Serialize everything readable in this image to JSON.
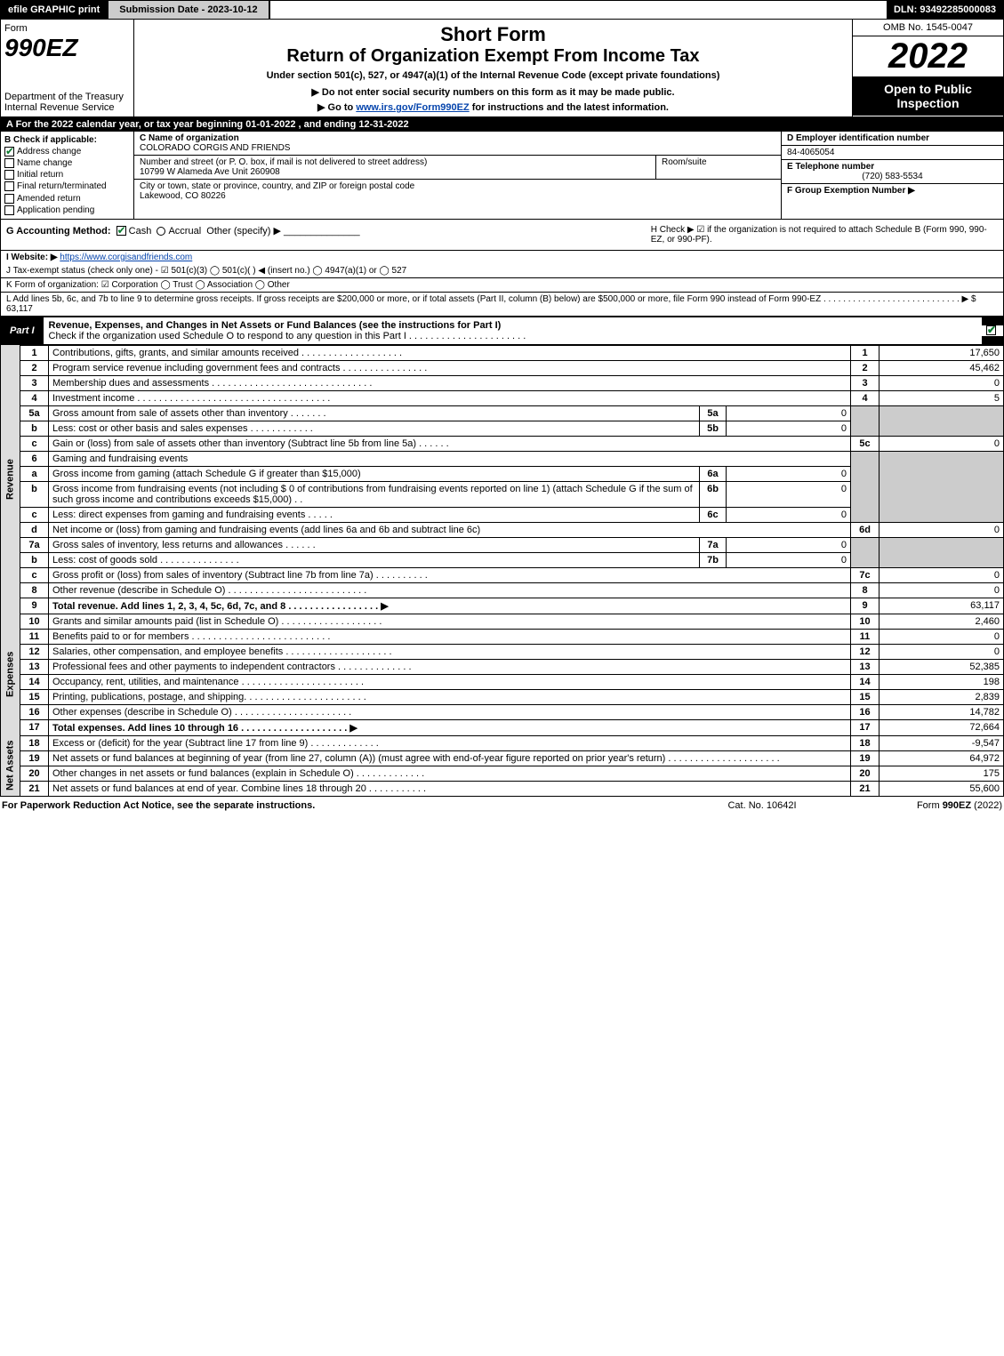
{
  "topbar": {
    "efile": "efile GRAPHIC print",
    "submission": "Submission Date - 2023-10-12",
    "dln": "DLN: 93492285000083"
  },
  "header": {
    "form_label": "Form",
    "form_code": "990EZ",
    "dept": "Department of the Treasury\nInternal Revenue Service",
    "short_form": "Short Form",
    "title": "Return of Organization Exempt From Income Tax",
    "subtitle": "Under section 501(c), 527, or 4947(a)(1) of the Internal Revenue Code (except private foundations)",
    "note1": "▶ Do not enter social security numbers on this form as it may be made public.",
    "note2_pre": "▶ Go to ",
    "note2_link": "www.irs.gov/Form990EZ",
    "note2_post": " for instructions and the latest information.",
    "omb": "OMB No. 1545-0047",
    "year": "2022",
    "open": "Open to Public Inspection"
  },
  "secA": "A  For the 2022 calendar year, or tax year beginning 01-01-2022 , and ending 12-31-2022",
  "secB": {
    "title": "B  Check if applicable:",
    "items": [
      {
        "label": "Address change",
        "checked": true
      },
      {
        "label": "Name change",
        "checked": false
      },
      {
        "label": "Initial return",
        "checked": false
      },
      {
        "label": "Final return/terminated",
        "checked": false
      },
      {
        "label": "Amended return",
        "checked": false
      },
      {
        "label": "Application pending",
        "checked": false
      }
    ]
  },
  "secC": {
    "name_lbl": "C Name of organization",
    "name": "COLORADO CORGIS AND FRIENDS",
    "street_lbl": "Number and street (or P. O. box, if mail is not delivered to street address)",
    "street": "10799 W Alameda Ave Unit 260908",
    "room_lbl": "Room/suite",
    "room": "",
    "city_lbl": "City or town, state or province, country, and ZIP or foreign postal code",
    "city": "Lakewood, CO  80226"
  },
  "secD": {
    "d_lbl": "D Employer identification number",
    "ein": "84-4065054",
    "e_lbl": "E Telephone number",
    "phone": "(720) 583-5534",
    "f_lbl": "F Group Exemption Number  ▶",
    "f_val": ""
  },
  "secG": {
    "label": "G Accounting Method:",
    "cash": "Cash",
    "accrual": "Accrual",
    "other": "Other (specify) ▶",
    "cash_checked": true,
    "accrual_checked": false
  },
  "secH": {
    "text": "H  Check ▶ ☑ if the organization is not required to attach Schedule B (Form 990, 990-EZ, or 990-PF)."
  },
  "secI": {
    "label": "I Website: ▶",
    "url": "https://www.corgisandfriends.com"
  },
  "secJ": {
    "text": "J Tax-exempt status (check only one) - ☑ 501(c)(3) ◯ 501(c)(  ) ◀ (insert no.) ◯ 4947(a)(1) or ◯ 527"
  },
  "secK": {
    "text": "K Form of organization:  ☑ Corporation  ◯ Trust  ◯ Association  ◯ Other"
  },
  "secL": {
    "text": "L Add lines 5b, 6c, and 7b to line 9 to determine gross receipts. If gross receipts are $200,000 or more, or if total assets (Part II, column (B) below) are $500,000 or more, file Form 990 instead of Form 990-EZ  .  .  .  .  .  .  .  .  .  .  .  .  .  .  .  .  .  .  .  .  .  .  .  .  .  .  .  .  ▶ $ 63,117"
  },
  "part1": {
    "label": "Part I",
    "title": "Revenue, Expenses, and Changes in Net Assets or Fund Balances (see the instructions for Part I)",
    "sub": "Check if the organization used Schedule O to respond to any question in this Part I  .  .  .  .  .  .  .  .  .  .  .  .  .  .  .  .  .  .  .  .  .  ."
  },
  "sides": {
    "revenue": "Revenue",
    "expenses": "Expenses",
    "netassets": "Net Assets"
  },
  "lines": {
    "l1": {
      "n": "1",
      "d": "Contributions, gifts, grants, and similar amounts received  .  .  .  .  .  .  .  .  .  .  .  .  .  .  .  .  .  .  .",
      "c": "1",
      "v": "17,650"
    },
    "l2": {
      "n": "2",
      "d": "Program service revenue including government fees and contracts  .  .  .  .  .  .  .  .  .  .  .  .  .  .  .  .",
      "c": "2",
      "v": "45,462"
    },
    "l3": {
      "n": "3",
      "d": "Membership dues and assessments  .  .  .  .  .  .  .  .  .  .  .  .  .  .  .  .  .  .  .  .  .  .  .  .  .  .  .  .  .  .",
      "c": "3",
      "v": "0"
    },
    "l4": {
      "n": "4",
      "d": "Investment income  .  .  .  .  .  .  .  .  .  .  .  .  .  .  .  .  .  .  .  .  .  .  .  .  .  .  .  .  .  .  .  .  .  .  .  .",
      "c": "4",
      "v": "5"
    },
    "l5a": {
      "n": "5a",
      "d": "Gross amount from sale of assets other than inventory  .  .  .  .  .  .  .",
      "s": "5a",
      "sv": "0"
    },
    "l5b": {
      "n": "b",
      "d": "Less: cost or other basis and sales expenses  .  .  .  .  .  .  .  .  .  .  .  .",
      "s": "5b",
      "sv": "0"
    },
    "l5c": {
      "n": "c",
      "d": "Gain or (loss) from sale of assets other than inventory (Subtract line 5b from line 5a)  .  .  .  .  .  .",
      "c": "5c",
      "v": "0"
    },
    "l6": {
      "n": "6",
      "d": "Gaming and fundraising events"
    },
    "l6a": {
      "n": "a",
      "d": "Gross income from gaming (attach Schedule G if greater than $15,000)",
      "s": "6a",
      "sv": "0"
    },
    "l6b": {
      "n": "b",
      "d": "Gross income from fundraising events (not including $ 0               of contributions from fundraising events reported on line 1) (attach Schedule G if the sum of such gross income and contributions exceeds $15,000)   .  .",
      "s": "6b",
      "sv": "0"
    },
    "l6c": {
      "n": "c",
      "d": "Less: direct expenses from gaming and fundraising events  .  .  .  .  .",
      "s": "6c",
      "sv": "0"
    },
    "l6d": {
      "n": "d",
      "d": "Net income or (loss) from gaming and fundraising events (add lines 6a and 6b and subtract line 6c)",
      "c": "6d",
      "v": "0"
    },
    "l7a": {
      "n": "7a",
      "d": "Gross sales of inventory, less returns and allowances  .  .  .  .  .  .",
      "s": "7a",
      "sv": "0"
    },
    "l7b": {
      "n": "b",
      "d": "Less: cost of goods sold        .  .  .  .  .  .  .  .  .  .  .  .  .  .  .",
      "s": "7b",
      "sv": "0"
    },
    "l7c": {
      "n": "c",
      "d": "Gross profit or (loss) from sales of inventory (Subtract line 7b from line 7a)  .  .  .  .  .  .  .  .  .  .",
      "c": "7c",
      "v": "0"
    },
    "l8": {
      "n": "8",
      "d": "Other revenue (describe in Schedule O)  .  .  .  .  .  .  .  .  .  .  .  .  .  .  .  .  .  .  .  .  .  .  .  .  .  .",
      "c": "8",
      "v": "0"
    },
    "l9": {
      "n": "9",
      "d": "Total revenue. Add lines 1, 2, 3, 4, 5c, 6d, 7c, and 8   .  .  .  .  .  .  .  .  .  .  .  .  .  .  .  .  .   ▶",
      "c": "9",
      "v": "63,117",
      "bold": true
    },
    "l10": {
      "n": "10",
      "d": "Grants and similar amounts paid (list in Schedule O)  .  .  .  .  .  .  .  .  .  .  .  .  .  .  .  .  .  .  .",
      "c": "10",
      "v": "2,460"
    },
    "l11": {
      "n": "11",
      "d": "Benefits paid to or for members      .  .  .  .  .  .  .  .  .  .  .  .  .  .  .  .  .  .  .  .  .  .  .  .  .  .",
      "c": "11",
      "v": "0"
    },
    "l12": {
      "n": "12",
      "d": "Salaries, other compensation, and employee benefits .  .  .  .  .  .  .  .  .  .  .  .  .  .  .  .  .  .  .  .",
      "c": "12",
      "v": "0"
    },
    "l13": {
      "n": "13",
      "d": "Professional fees and other payments to independent contractors  .  .  .  .  .  .  .  .  .  .  .  .  .  .",
      "c": "13",
      "v": "52,385"
    },
    "l14": {
      "n": "14",
      "d": "Occupancy, rent, utilities, and maintenance .  .  .  .  .  .  .  .  .  .  .  .  .  .  .  .  .  .  .  .  .  .  .",
      "c": "14",
      "v": "198"
    },
    "l15": {
      "n": "15",
      "d": "Printing, publications, postage, and shipping.  .  .  .  .  .  .  .  .  .  .  .  .  .  .  .  .  .  .  .  .  .  .",
      "c": "15",
      "v": "2,839"
    },
    "l16": {
      "n": "16",
      "d": "Other expenses (describe in Schedule O)      .  .  .  .  .  .  .  .  .  .  .  .  .  .  .  .  .  .  .  .  .  .",
      "c": "16",
      "v": "14,782"
    },
    "l17": {
      "n": "17",
      "d": "Total expenses. Add lines 10 through 16      .  .  .  .  .  .  .  .  .  .  .  .  .  .  .  .  .  .  .  .   ▶",
      "c": "17",
      "v": "72,664",
      "bold": true
    },
    "l18": {
      "n": "18",
      "d": "Excess or (deficit) for the year (Subtract line 17 from line 9)        .  .  .  .  .  .  .  .  .  .  .  .  .",
      "c": "18",
      "v": "-9,547"
    },
    "l19": {
      "n": "19",
      "d": "Net assets or fund balances at beginning of year (from line 27, column (A)) (must agree with end-of-year figure reported on prior year's return) .  .  .  .  .  .  .  .  .  .  .  .  .  .  .  .  .  .  .  .  .",
      "c": "19",
      "v": "64,972"
    },
    "l20": {
      "n": "20",
      "d": "Other changes in net assets or fund balances (explain in Schedule O) .  .  .  .  .  .  .  .  .  .  .  .  .",
      "c": "20",
      "v": "175"
    },
    "l21": {
      "n": "21",
      "d": "Net assets or fund balances at end of year. Combine lines 18 through 20 .  .  .  .  .  .  .  .  .  .  .",
      "c": "21",
      "v": "55,600"
    }
  },
  "footer": {
    "l": "For Paperwork Reduction Act Notice, see the separate instructions.",
    "c": "Cat. No. 10642I",
    "r": "Form 990-EZ (2022)"
  },
  "colors": {
    "black": "#000000",
    "white": "#ffffff",
    "grey": "#cccccc",
    "link": "#0645ad",
    "check": "#0a7a2f"
  }
}
